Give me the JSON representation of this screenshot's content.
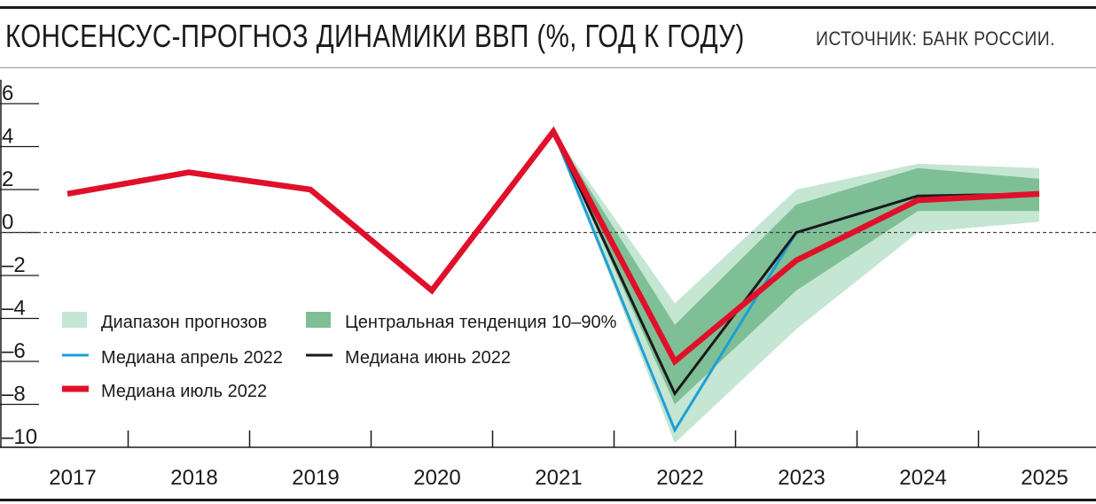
{
  "header": {
    "title": "КОНСЕНСУС-ПРОГНОЗ ДИНАМИКИ ВВП (%, ГОД К ГОДУ)",
    "source": "ИСТОЧНИК: БАНК РОССИИ."
  },
  "colors": {
    "july": "#e0102a",
    "june": "#1a1a1a",
    "april": "#1e9fd6",
    "range": "#c5e6d3",
    "central": "#7fbf96"
  },
  "chart_data": {
    "type": "line",
    "x": [
      "2017",
      "2018",
      "2019",
      "2020",
      "2021",
      "2022",
      "2023",
      "2024",
      "2025"
    ],
    "ylim": [
      -10,
      6
    ],
    "yticks": [
      "6",
      "4",
      "2",
      "0",
      "–2",
      "–4",
      "–6",
      "–8",
      "–10"
    ],
    "ytick_values": [
      6,
      4,
      2,
      0,
      -2,
      -4,
      -6,
      -8,
      -10
    ],
    "zero_line": "dashed",
    "series": [
      {
        "name": "Медиана июль 2022",
        "x": [
          "2017",
          "2018",
          "2019",
          "2020",
          "2021",
          "2022",
          "2023",
          "2024",
          "2025"
        ],
        "values": [
          1.8,
          2.8,
          2.0,
          -2.7,
          4.7,
          -6.0,
          -1.3,
          1.5,
          1.8
        ]
      },
      {
        "name": "Медиана июнь 2022",
        "x": [
          "2021",
          "2022",
          "2023",
          "2024",
          "2025"
        ],
        "values": [
          4.7,
          -7.5,
          0.0,
          1.7,
          1.8
        ]
      },
      {
        "name": "Медиана апрель 2022",
        "x": [
          "2021",
          "2022",
          "2023",
          "2024",
          "2025"
        ],
        "values": [
          4.7,
          -9.2,
          0.0,
          1.7,
          1.8
        ]
      }
    ],
    "bands": [
      {
        "name": "Диапазон прогнозов",
        "x": [
          "2021",
          "2022",
          "2023",
          "2024",
          "2025"
        ],
        "upper": [
          4.7,
          -3.3,
          2.0,
          3.2,
          3.0
        ],
        "lower": [
          4.7,
          -9.8,
          -4.5,
          0.0,
          0.5
        ]
      },
      {
        "name": "Центральная тенденция 10–90%",
        "x": [
          "2021",
          "2022",
          "2023",
          "2024",
          "2025"
        ],
        "upper": [
          4.7,
          -4.3,
          1.3,
          3.0,
          2.5
        ],
        "lower": [
          4.7,
          -8.0,
          -2.7,
          1.0,
          1.0
        ]
      }
    ],
    "legend": [
      {
        "label": "Диапазон прогнозов",
        "kind": "band",
        "color": "#c5e6d3"
      },
      {
        "label": "Центральная тенденция 10–90%",
        "kind": "band",
        "color": "#7fbf96"
      },
      {
        "label": "Медиана апрель 2022",
        "kind": "line",
        "color": "#1e9fd6"
      },
      {
        "label": "Медиана июнь 2022",
        "kind": "line",
        "color": "#1a1a1a"
      },
      {
        "label": "Медиана июль 2022",
        "kind": "line",
        "color": "#e0102a"
      }
    ]
  }
}
